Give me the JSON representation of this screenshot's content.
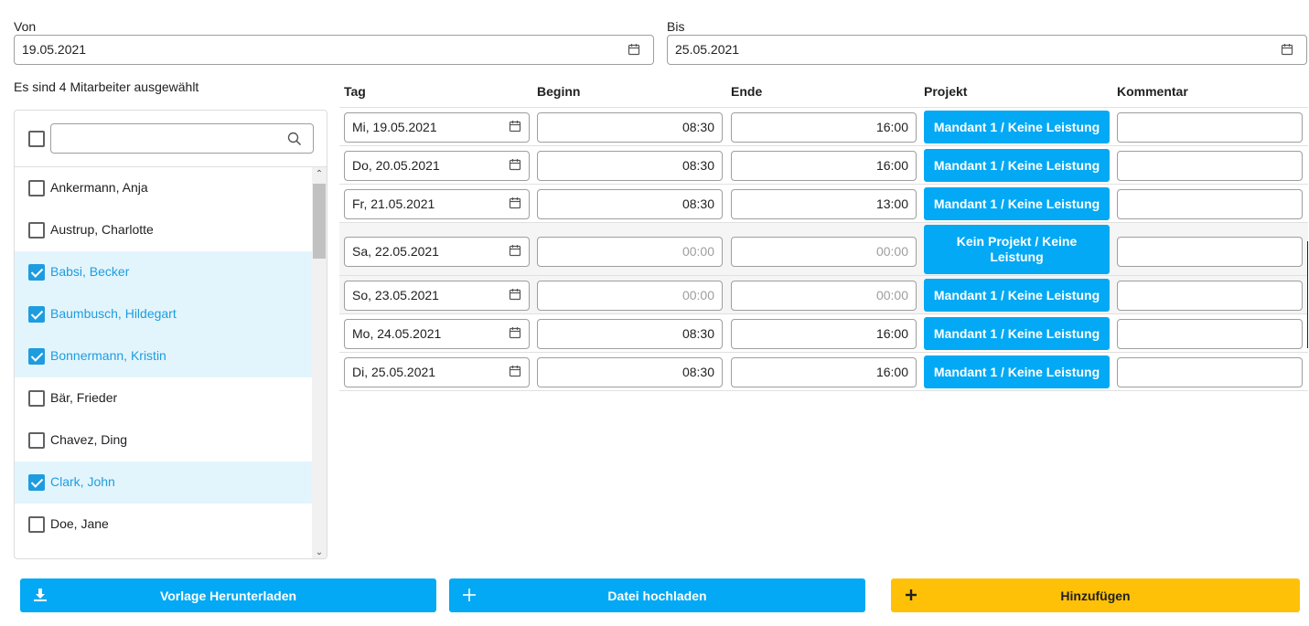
{
  "from": {
    "label": "Von",
    "value": "19.05.2021"
  },
  "to": {
    "label": "Bis",
    "value": "25.05.2021"
  },
  "selection_summary": "Es sind 4 Mitarbeiter ausgewählt",
  "employees": {
    "search_value": "",
    "items": [
      {
        "name": "Ankermann, Anja",
        "selected": false
      },
      {
        "name": "Austrup, Charlotte",
        "selected": false
      },
      {
        "name": "Babsi, Becker",
        "selected": true
      },
      {
        "name": "Baumbusch, Hildegart",
        "selected": true
      },
      {
        "name": "Bonnermann, Kristin",
        "selected": true
      },
      {
        "name": "Bär, Frieder",
        "selected": false
      },
      {
        "name": "Chavez, Ding",
        "selected": false
      },
      {
        "name": "Clark, John",
        "selected": true
      },
      {
        "name": "Doe, Jane",
        "selected": false
      }
    ]
  },
  "table": {
    "headers": {
      "day": "Tag",
      "begin": "Beginn",
      "end": "Ende",
      "project": "Projekt",
      "comment": "Kommentar"
    },
    "rows": [
      {
        "day": "Mi, 19.05.2021",
        "begin": "08:30",
        "end": "16:00",
        "project": "Mandant 1 / Keine Leistung",
        "comment": ""
      },
      {
        "day": "Do, 20.05.2021",
        "begin": "08:30",
        "end": "16:00",
        "project": "Mandant 1 / Keine Leistung",
        "comment": ""
      },
      {
        "day": "Fr, 21.05.2021",
        "begin": "08:30",
        "end": "13:00",
        "project": "Mandant 1 / Keine Leistung",
        "comment": ""
      },
      {
        "day": "Sa, 22.05.2021",
        "begin": "00:00",
        "end": "00:00",
        "project": "Kein Projekt / Keine Leistung",
        "comment": ""
      },
      {
        "day": "So, 23.05.2021",
        "begin": "00:00",
        "end": "00:00",
        "project": "Mandant 1 / Keine Leistung",
        "comment": ""
      },
      {
        "day": "Mo, 24.05.2021",
        "begin": "08:30",
        "end": "16:00",
        "project": "Mandant 1 / Keine Leistung",
        "comment": ""
      },
      {
        "day": "Di, 25.05.2021",
        "begin": "08:30",
        "end": "16:00",
        "project": "Mandant 1 / Keine Leistung",
        "comment": ""
      }
    ]
  },
  "buttons": {
    "download": "Vorlage Herunterladen",
    "upload": "Datei hochladen",
    "add": "Hinzufügen"
  },
  "colors": {
    "primary": "#03a9f4",
    "accent": "#ffc107",
    "selected_bg": "#e3f5fc",
    "selected_text": "#1e9ce0"
  },
  "icons": {
    "date": "calendar-icon",
    "search": "search-icon",
    "download": "download-icon",
    "upload": "plus-icon",
    "add": "plus-icon"
  }
}
